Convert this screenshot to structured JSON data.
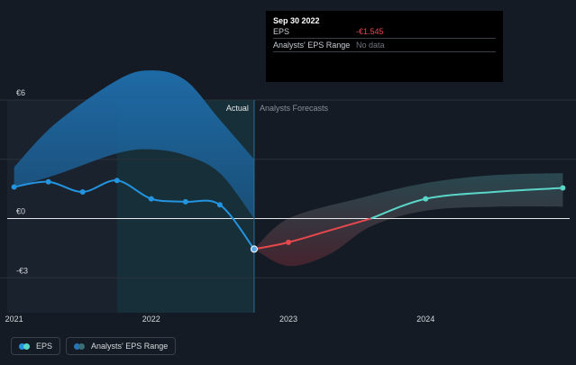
{
  "tooltip": {
    "date": "Sep 30 2022",
    "rows": [
      {
        "label": "EPS",
        "value": "-€1.545"
      },
      {
        "label": "Analysts' EPS Range",
        "value": "No data"
      }
    ]
  },
  "legend": [
    {
      "label": "EPS",
      "color1": "#2394df",
      "color2": "#5ad6c8"
    },
    {
      "label": "Analysts' EPS Range",
      "color1": "#2394df",
      "color2": "#3a6d74"
    }
  ],
  "chart_data": {
    "type": "line",
    "title": "",
    "y_tick_labels": [
      "€6",
      "€0",
      "-€3"
    ],
    "y_ticks": [
      6,
      0,
      -3
    ],
    "ylim": [
      -4.4,
      6
    ],
    "xlim": [
      2020.95,
      2025.05
    ],
    "x_tick_labels": [
      "2021",
      "2022",
      "2023",
      "2024"
    ],
    "x_ticks": [
      2021,
      2022,
      2023,
      2024
    ],
    "region_labels": {
      "actual": "Actual",
      "forecast": "Analysts Forecasts"
    },
    "split_x": 2022.75,
    "series": [
      {
        "name": "EPS (Actual)",
        "color": "#2394df",
        "points": [
          [
            2021.0,
            1.6
          ],
          [
            2021.25,
            1.86
          ],
          [
            2021.5,
            1.35
          ],
          [
            2021.75,
            1.93
          ],
          [
            2022.0,
            1.0
          ],
          [
            2022.25,
            0.85
          ],
          [
            2022.5,
            0.7
          ],
          [
            2022.75,
            -1.545
          ]
        ],
        "markers": [
          [
            2021.0,
            1.6
          ],
          [
            2021.25,
            1.86
          ],
          [
            2021.5,
            1.35
          ],
          [
            2021.75,
            1.93
          ],
          [
            2022.0,
            1.0
          ],
          [
            2022.25,
            0.85
          ],
          [
            2022.5,
            0.7
          ]
        ]
      },
      {
        "name": "EPS (Forecast, negative)",
        "color": "#e5484d",
        "points": [
          [
            2022.75,
            -1.545
          ],
          [
            2023.0,
            -1.2
          ],
          [
            2023.3,
            -0.6
          ],
          [
            2023.6,
            0.0
          ]
        ],
        "markers": [
          [
            2023.0,
            -1.2
          ]
        ]
      },
      {
        "name": "EPS (Forecast, positive)",
        "color": "#5ad6c8",
        "points": [
          [
            2023.6,
            0.0
          ],
          [
            2024.0,
            1.0
          ],
          [
            2024.5,
            1.35
          ],
          [
            2025.0,
            1.55
          ]
        ],
        "markers": [
          [
            2024.0,
            1.0
          ],
          [
            2025.0,
            1.55
          ]
        ]
      },
      {
        "name": "Analysts' EPS Range (Actual)",
        "type": "band",
        "color": "#2375b3",
        "upper": [
          [
            2021.0,
            2.6
          ],
          [
            2021.3,
            4.8
          ],
          [
            2021.75,
            7.0
          ],
          [
            2022.0,
            7.5
          ],
          [
            2022.25,
            7.0
          ],
          [
            2022.5,
            5.0
          ],
          [
            2022.75,
            3.0
          ]
        ],
        "lower": [
          [
            2021.0,
            1.6
          ],
          [
            2021.3,
            2.2
          ],
          [
            2021.75,
            3.3
          ],
          [
            2022.0,
            3.5
          ],
          [
            2022.25,
            3.2
          ],
          [
            2022.5,
            2.3
          ],
          [
            2022.75,
            0.0
          ]
        ]
      },
      {
        "name": "Analysts' EPS Range (Forecast)",
        "type": "band",
        "color": "#3a6d74",
        "upper": [
          [
            2022.75,
            -1.545
          ],
          [
            2023.0,
            0.0
          ],
          [
            2023.5,
            1.0
          ],
          [
            2024.0,
            1.8
          ],
          [
            2024.5,
            2.2
          ],
          [
            2025.0,
            2.3
          ]
        ],
        "lower": [
          [
            2022.75,
            -1.545
          ],
          [
            2023.0,
            -2.4
          ],
          [
            2023.3,
            -1.8
          ],
          [
            2023.6,
            -0.4
          ],
          [
            2024.0,
            0.4
          ],
          [
            2024.5,
            0.6
          ],
          [
            2025.0,
            0.6
          ]
        ]
      }
    ],
    "highlight_point": {
      "x": 2022.75,
      "y": -1.545,
      "label": "Sep 30 2022"
    }
  }
}
